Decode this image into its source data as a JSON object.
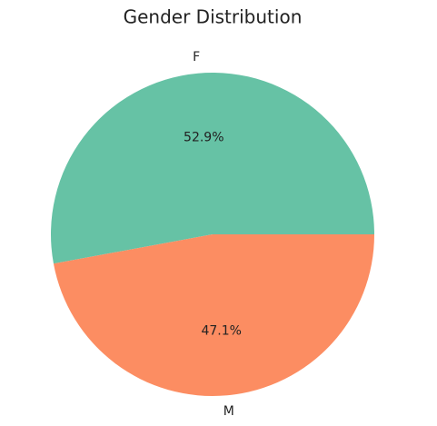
{
  "chart_data": {
    "type": "pie",
    "title": "Gender Distribution",
    "categories": [
      "F",
      "M"
    ],
    "values": [
      52.9,
      47.1
    ],
    "value_labels": [
      "52.9%",
      "47.1%"
    ],
    "colors": [
      "#66c2a5",
      "#fc8d62"
    ]
  }
}
